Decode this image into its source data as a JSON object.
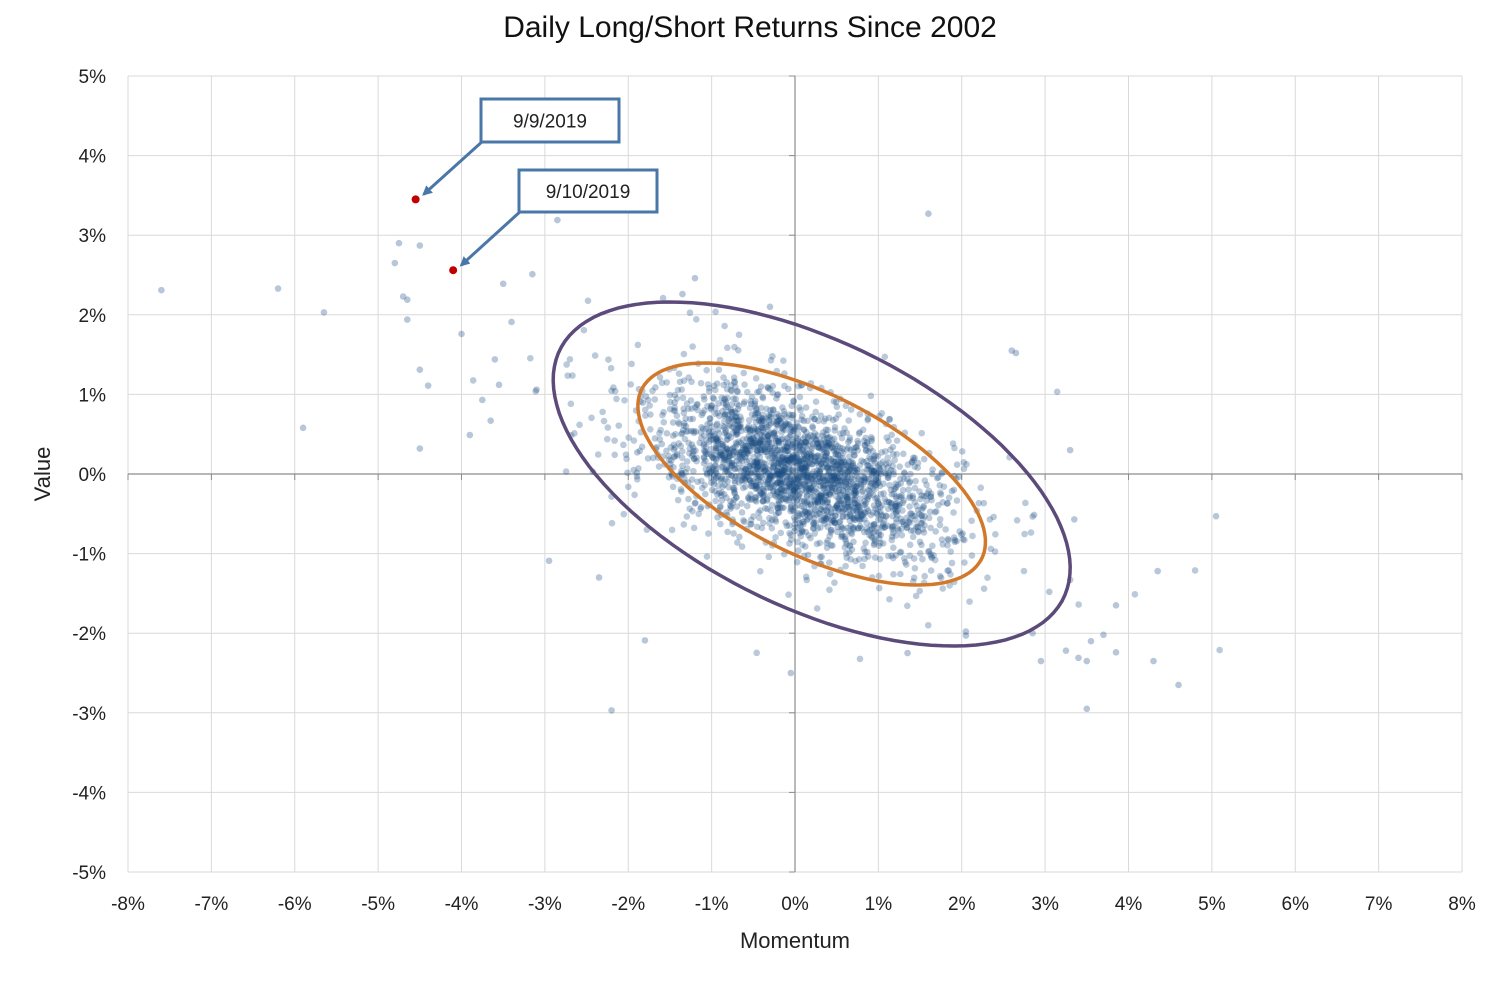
{
  "chart_data": {
    "type": "scatter",
    "title": "Daily Long/Short Returns Since 2002",
    "xlabel": "Momentum",
    "ylabel": "Value",
    "xlim": [
      -8,
      8
    ],
    "ylim": [
      -5,
      5
    ],
    "x_ticks": [
      -8,
      -7,
      -6,
      -5,
      -4,
      -3,
      -2,
      -1,
      0,
      1,
      2,
      3,
      4,
      5,
      6,
      7,
      8
    ],
    "y_ticks": [
      -5,
      -4,
      -3,
      -2,
      -1,
      0,
      1,
      2,
      3,
      4,
      5
    ],
    "x_tick_labels": [
      "-8%",
      "-7%",
      "-6%",
      "-5%",
      "-4%",
      "-3%",
      "-2%",
      "-1%",
      "0%",
      "1%",
      "2%",
      "3%",
      "4%",
      "5%",
      "6%",
      "7%",
      "8%"
    ],
    "y_tick_labels": [
      "-5%",
      "-4%",
      "-3%",
      "-2%",
      "-1%",
      "0%",
      "1%",
      "2%",
      "3%",
      "4%",
      "5%"
    ],
    "grid": true,
    "colors": {
      "points": "#1f4e85",
      "highlight": "#c00000",
      "inner_ellipse": "#d2782a",
      "outer_ellipse": "#5b4a7a",
      "annotation_border": "#4a77a8",
      "grid": "#d9d9d9"
    },
    "ellipses": [
      {
        "name": "inner",
        "center": [
          0.2,
          0.0
        ],
        "semi_major": 2.3,
        "semi_minor": 1.0,
        "angle_deg": -28
      },
      {
        "name": "outer",
        "center": [
          0.2,
          0.0
        ],
        "semi_major": 3.4,
        "semi_minor": 1.65,
        "angle_deg": -28
      }
    ],
    "outliers": [
      [
        -7.6,
        2.31
      ],
      [
        -6.2,
        2.33
      ],
      [
        -5.65,
        2.03
      ],
      [
        -5.9,
        0.58
      ],
      [
        -4.8,
        2.65
      ],
      [
        -4.75,
        2.9
      ],
      [
        -4.7,
        2.23
      ],
      [
        -4.65,
        2.19
      ],
      [
        -4.65,
        1.94
      ],
      [
        -4.5,
        2.87
      ],
      [
        -4.5,
        1.31
      ],
      [
        -4.4,
        1.11
      ],
      [
        -4.5,
        0.32
      ],
      [
        -4.0,
        1.76
      ],
      [
        -3.9,
        0.49
      ],
      [
        -3.5,
        2.39
      ],
      [
        -3.15,
        2.51
      ],
      [
        -2.85,
        3.19
      ],
      [
        -3.6,
        1.44
      ],
      [
        -3.55,
        1.12
      ],
      [
        -3.4,
        1.91
      ],
      [
        -3.75,
        0.93
      ],
      [
        -3.65,
        0.67
      ],
      [
        -3.1,
        1.06
      ],
      [
        -1.35,
        2.26
      ],
      [
        -1.2,
        2.46
      ],
      [
        -0.3,
        2.1
      ],
      [
        1.6,
        3.27
      ],
      [
        2.65,
        1.52
      ],
      [
        2.6,
        1.55
      ],
      [
        5.05,
        -0.53
      ],
      [
        4.35,
        -1.22
      ],
      [
        4.3,
        -2.35
      ],
      [
        4.6,
        -2.65
      ],
      [
        3.85,
        -1.65
      ],
      [
        3.85,
        -2.24
      ],
      [
        3.7,
        -2.02
      ],
      [
        3.55,
        -2.1
      ],
      [
        3.5,
        -2.35
      ],
      [
        3.4,
        -2.31
      ],
      [
        3.25,
        -2.22
      ],
      [
        3.5,
        -2.95
      ],
      [
        2.95,
        -2.35
      ],
      [
        2.85,
        -2.0
      ],
      [
        2.05,
        -1.98
      ],
      [
        2.05,
        -2.03
      ],
      [
        1.35,
        -2.25
      ],
      [
        -2.2,
        -2.97
      ],
      [
        -1.8,
        -2.09
      ],
      [
        -2.35,
        -1.3
      ],
      [
        -2.95,
        -1.09
      ],
      [
        -0.05,
        -2.5
      ],
      [
        3.3,
        0.3
      ],
      [
        3.35,
        -0.57
      ],
      [
        3.05,
        -1.48
      ],
      [
        3.3,
        -1.33
      ]
    ],
    "cloud": {
      "approx_points": 2400,
      "mean": [
        0.0,
        0.05
      ],
      "sd_momentum": 0.85,
      "sd_value": 0.5,
      "correlation": -0.55
    },
    "highlighted_points": [
      {
        "label": "9/9/2019",
        "x": -4.55,
        "y": 3.45
      },
      {
        "label": "9/10/2019",
        "x": -4.1,
        "y": 2.56
      }
    ]
  }
}
